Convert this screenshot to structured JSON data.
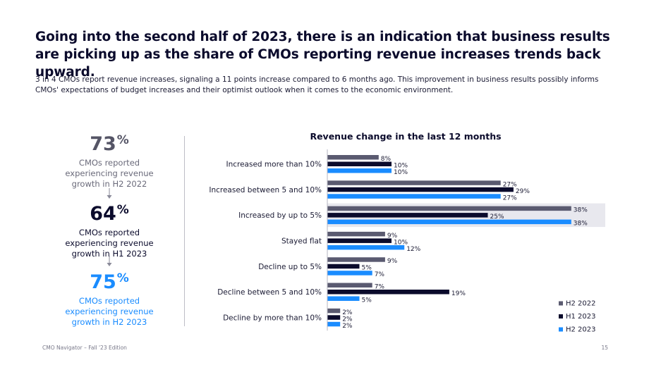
{
  "headline": "Going into the second half of 2023, there is an indication that business results are picking up as the share of CMOs reporting revenue increases trends back upward.",
  "intro": "3 in 4 CMOs report revenue increases, signaling a 11 points increase compared to 6 months ago. This improvement in business results possibly informs CMOs' expectations of budget increases and their optimist outlook when it comes to the economic environment.",
  "stats": [
    {
      "number": "73",
      "suffix": "%",
      "desc": "CMOs reported experiencing revenue growth in H2 2022"
    },
    {
      "number": "64",
      "suffix": "%",
      "desc": "CMOs reported experiencing revenue growth in H1 2023"
    },
    {
      "number": "75",
      "suffix": "%",
      "desc": "CMOs reported experiencing revenue growth in H2 2023"
    }
  ],
  "footer": {
    "source": "CMO Navigator – Fall '23 Edition",
    "page": "15"
  },
  "chart_data": {
    "type": "bar",
    "orientation": "horizontal",
    "title": "Revenue change in the last 12 months",
    "categories": [
      "Increased more than 10%",
      "Increased between 5 and 10%",
      "Increased by up to 5%",
      "Stayed flat",
      "Decline up to 5%",
      "Decline between 5 and 10%",
      "Decline by more than 10%"
    ],
    "series": [
      {
        "name": "H2 2022",
        "color": "#5a5a70",
        "values": [
          8,
          27,
          38,
          9,
          9,
          7,
          2
        ]
      },
      {
        "name": "H1 2023",
        "color": "#0b0b2c",
        "values": [
          10,
          29,
          25,
          10,
          5,
          19,
          2
        ]
      },
      {
        "name": "H2 2023",
        "color": "#1a8cff",
        "values": [
          10,
          27,
          38,
          12,
          7,
          5,
          2
        ]
      }
    ],
    "highlight_category": "Increased by up to 5%",
    "value_suffix": "%",
    "xlim": [
      0,
      40
    ],
    "legend": "bottom-right"
  }
}
